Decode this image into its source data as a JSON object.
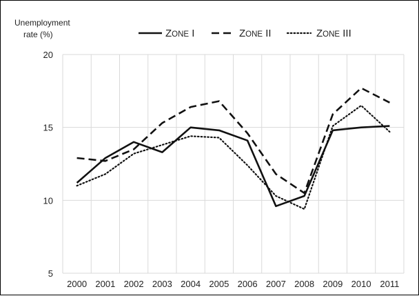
{
  "chart_data": {
    "type": "line",
    "ylabel_lines": [
      "Unemployment",
      "rate (%)"
    ],
    "xlabel": "",
    "categories": [
      "2000",
      "2001",
      "2002",
      "2003",
      "2004",
      "2005",
      "2006",
      "2007",
      "2008",
      "2009",
      "2010",
      "2011"
    ],
    "ylim": [
      5,
      20
    ],
    "yticks": [
      5,
      10,
      15,
      20
    ],
    "grid": "both",
    "legend_position": "top",
    "series": [
      {
        "name": "Zone I",
        "legend_parts": [
          "Z",
          "ONE",
          " I"
        ],
        "style": "solid",
        "color": "#111111",
        "values": [
          11.2,
          12.9,
          14.0,
          13.3,
          15.0,
          14.8,
          14.1,
          9.6,
          10.3,
          14.8,
          15.0,
          15.1
        ]
      },
      {
        "name": "Zone II",
        "legend_parts": [
          "Z",
          "ONE",
          " II"
        ],
        "style": "dashed",
        "color": "#111111",
        "values": [
          12.9,
          12.7,
          13.5,
          15.3,
          16.4,
          16.8,
          14.6,
          11.8,
          10.5,
          15.9,
          17.7,
          16.7
        ]
      },
      {
        "name": "Zone III",
        "legend_parts": [
          "Z",
          "ONE",
          " III"
        ],
        "style": "dotted",
        "color": "#111111",
        "values": [
          11.0,
          11.8,
          13.2,
          13.8,
          14.4,
          14.3,
          12.4,
          10.3,
          9.4,
          15.1,
          16.5,
          14.7
        ]
      }
    ]
  }
}
